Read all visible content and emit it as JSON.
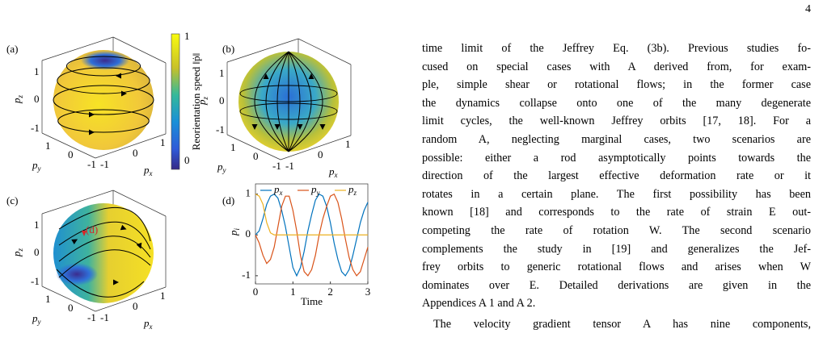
{
  "page_number": "4",
  "figure": {
    "colorbar": {
      "ticks": [
        1,
        0
      ],
      "label": "Reorientation speed ‖ṗ‖"
    },
    "sphere_panels": [
      {
        "label": "(a)",
        "z_ticks": [
          1,
          0,
          -1
        ],
        "y_ticks": [
          1,
          0,
          -1
        ],
        "x_ticks": [
          -1,
          0,
          1
        ],
        "axis_base": "p",
        "x_sub": "x",
        "y_sub": "y",
        "z_sub": "z"
      },
      {
        "label": "(b)",
        "z_ticks": [
          1,
          0,
          -1
        ],
        "y_ticks": [
          1,
          0,
          -1
        ],
        "x_ticks": [
          -1,
          0,
          1
        ],
        "axis_base": "p",
        "x_sub": "x",
        "y_sub": "y",
        "z_sub": "z"
      },
      {
        "label": "(c)",
        "z_ticks": [
          1,
          0,
          -1
        ],
        "y_ticks": [
          1,
          0,
          -1
        ],
        "x_ticks": [
          -1,
          0,
          1
        ],
        "axis_base": "p",
        "x_sub": "x",
        "y_sub": "y",
        "z_sub": "z",
        "annotation": "(d)"
      }
    ],
    "panel_d": {
      "type": "line",
      "label": "(d)",
      "xlabel": "Time",
      "ylabel_base": "p",
      "ylabel_sub": "i",
      "x": [
        0,
        0.1,
        0.2,
        0.3,
        0.4,
        0.5,
        0.6,
        0.7,
        0.8,
        0.9,
        1.0,
        1.1,
        1.2,
        1.3,
        1.4,
        1.5,
        1.6,
        1.7,
        1.8,
        1.9,
        2.0,
        2.1,
        2.2,
        2.3,
        2.4,
        2.5,
        2.6,
        2.7,
        2.8,
        2.9,
        3.0
      ],
      "series": [
        {
          "name": "p",
          "subscript": "x",
          "color": "#0072bd",
          "values": [
            0,
            0.1,
            0.4,
            0.75,
            0.95,
            1.0,
            0.9,
            0.6,
            0.2,
            -0.3,
            -0.8,
            -1.0,
            -0.8,
            -0.4,
            0.1,
            0.5,
            0.85,
            1.0,
            0.95,
            0.7,
            0.3,
            -0.2,
            -0.6,
            -0.9,
            -1.0,
            -0.85,
            -0.5,
            -0.1,
            0.3,
            0.6,
            0.8
          ]
        },
        {
          "name": "p",
          "subscript": "y",
          "color": "#d95319",
          "values": [
            0,
            -0.2,
            -0.5,
            -0.7,
            -0.6,
            -0.3,
            0.2,
            0.7,
            0.95,
            0.95,
            0.6,
            0.1,
            -0.5,
            -0.9,
            -1.0,
            -0.85,
            -0.5,
            0.0,
            0.4,
            0.7,
            0.95,
            1.0,
            0.8,
            0.4,
            -0.1,
            -0.55,
            -0.85,
            -1.0,
            -0.9,
            -0.6,
            -0.3
          ]
        },
        {
          "name": "p",
          "subscript": "z",
          "color": "#edb120",
          "values": [
            1,
            0.95,
            0.75,
            0.3,
            0.05,
            0,
            0,
            0,
            0,
            0,
            0,
            0,
            0,
            0,
            0,
            0,
            0,
            0,
            0,
            0,
            0,
            0,
            0,
            0,
            0,
            0,
            0,
            0,
            0,
            0,
            0
          ]
        }
      ],
      "xlim": [
        0,
        3
      ],
      "ylim": [
        -1.2,
        1.25
      ],
      "xticks": [
        0,
        1,
        2,
        3
      ],
      "yticks": [
        -1,
        0,
        1
      ]
    }
  },
  "body": {
    "lines": [
      "time limit of the Jeffrey Eq. (3b). Previous studies fo-",
      "cused on special cases with A derived from, for exam-",
      "ple, simple shear or rotational flows; in the former case",
      "the dynamics collapse onto one of the many degenerate",
      "limit cycles, the well-known Jeffrey orbits [17, 18]. For a",
      "random A, neglecting marginal cases, two scenarios are",
      "possible: either a rod asymptotically points towards the",
      "direction of the largest effective deformation rate or it",
      "rotates in a certain plane. The first possibility has been",
      "known [18] and corresponds to the rate of strain E out-",
      "competing the rate of rotation W. The second scenario",
      "complements the study in [19] and generalizes the Jef-",
      "frey orbits to generic rotational flows and arises when W",
      "dominates over E. Detailed derivations are given in the",
      "Appendices A 1 and A 2."
    ],
    "paragraph2": [
      "The velocity gradient tensor A has nine components,"
    ]
  }
}
